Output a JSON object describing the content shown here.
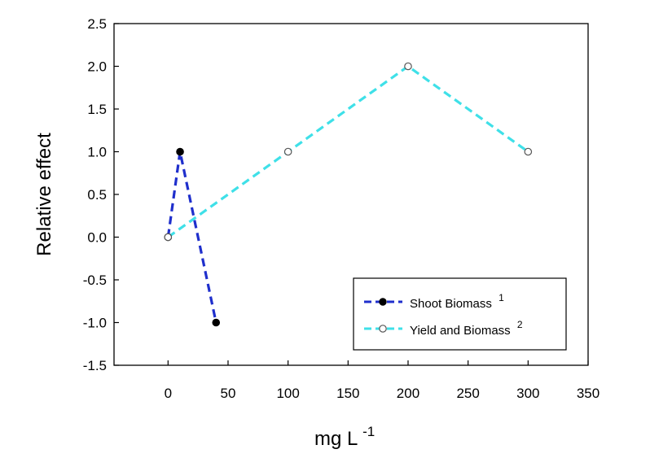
{
  "chart_data": {
    "type": "line",
    "title": "",
    "xlabel": "mg L",
    "xlabel_sup": "-1",
    "ylabel": "Relative effect",
    "xlim": [
      -45,
      350
    ],
    "ylim": [
      -1.5,
      2.5
    ],
    "xticks": [
      0,
      50,
      100,
      150,
      200,
      250,
      300,
      350
    ],
    "yticks": [
      -1.5,
      -1.0,
      -0.5,
      0.0,
      0.5,
      1.0,
      1.5,
      2.0,
      2.5
    ],
    "xtick_labels": [
      "0",
      "50",
      "100",
      "150",
      "200",
      "250",
      "300",
      "350"
    ],
    "ytick_labels": [
      "-1.5",
      "-1.0",
      "-0.5",
      "0.0",
      "0.5",
      "1.0",
      "1.5",
      "2.0",
      "2.5"
    ],
    "grid": false,
    "legend_position": "bottom-right",
    "series": [
      {
        "name": "Shoot Biomass",
        "sup": "1",
        "color": "#1f2fcc",
        "marker": "filled-circle",
        "x": [
          0,
          10,
          40
        ],
        "y": [
          0.0,
          1.0,
          -1.0
        ]
      },
      {
        "name": "Yield and Biomass",
        "sup": "2",
        "color": "#3fe0e8",
        "marker": "open-circle",
        "x": [
          0,
          100,
          200,
          300
        ],
        "y": [
          0.0,
          1.0,
          2.0,
          1.0
        ]
      }
    ]
  }
}
